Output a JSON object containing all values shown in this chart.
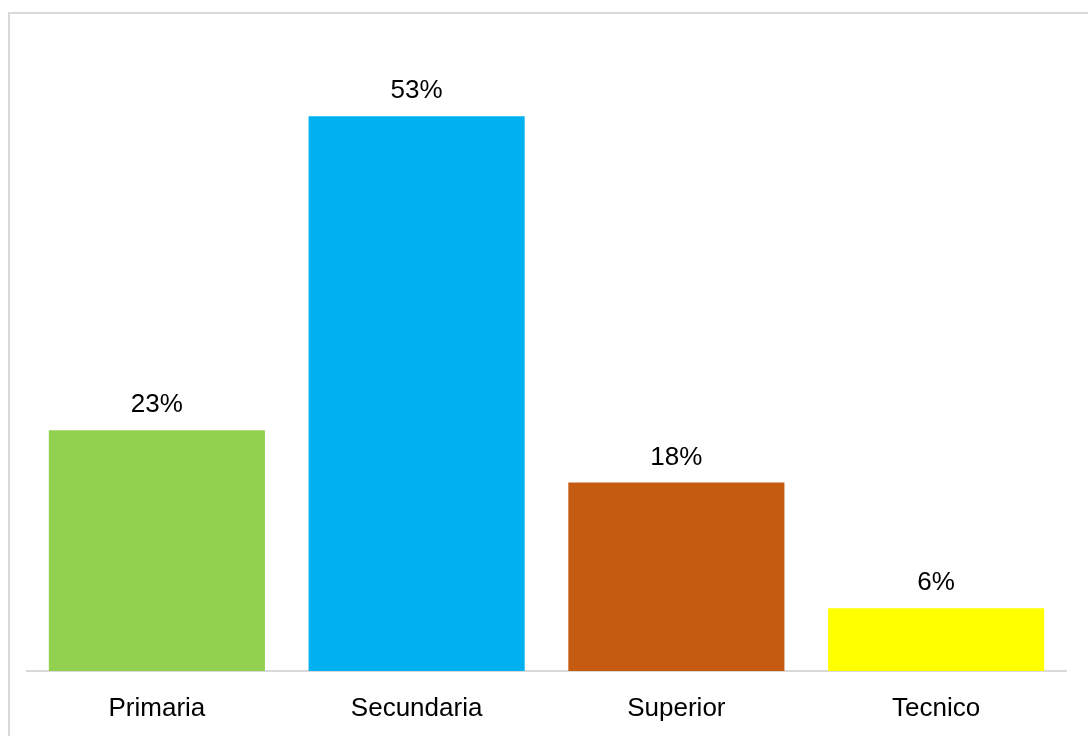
{
  "chart_data": {
    "type": "bar",
    "categories": [
      "Primaria",
      "Secundaria",
      "Superior",
      "Tecnico"
    ],
    "values": [
      23,
      53,
      18,
      6
    ],
    "colors": [
      "#92d050",
      "#00b0f0",
      "#c55a11",
      "#ffff00"
    ],
    "value_labels": [
      "23%",
      "53%",
      "18%",
      "6%"
    ]
  }
}
